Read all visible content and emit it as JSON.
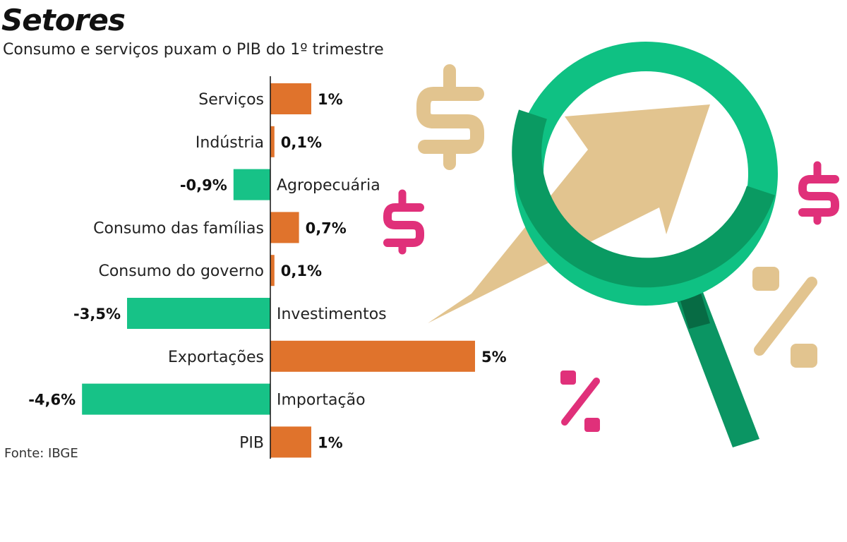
{
  "title": "Setores",
  "subtitle": "Consumo e serviços puxam o PIB do 1º trimestre",
  "source": "Fonte: IBGE",
  "colors": {
    "positive": "#E0732C",
    "negative": "#17C287",
    "magnifier_ring": "#0FC183",
    "magnifier_ring_dark": "#0A9A62",
    "magnifier_handle": "#0B9563",
    "arrow": "#E2C48F",
    "dollar_beige": "#E2C48F",
    "dollar_pink": "#E0307A"
  },
  "icons": [
    "dollar-sign-icon",
    "percent-sign-icon",
    "magnifying-glass-icon",
    "trend-arrow-icon"
  ],
  "chart_data": {
    "type": "bar",
    "orientation": "horizontal",
    "categories": [
      "Serviços",
      "Indústria",
      "Agropecuária",
      "Consumo das famílias",
      "Consumo do governo",
      "Investimentos",
      "Exportações",
      "Importação",
      "PIB"
    ],
    "values": [
      1,
      0.1,
      -0.9,
      0.7,
      0.1,
      -3.5,
      5,
      -4.6,
      1
    ],
    "value_labels": [
      "1%",
      "0,1%",
      "-0,9%",
      "0,7%",
      "0,1%",
      "-3,5%",
      "5%",
      "-4,6%",
      "1%"
    ],
    "unit": "%",
    "grid": false,
    "legend": "none"
  }
}
